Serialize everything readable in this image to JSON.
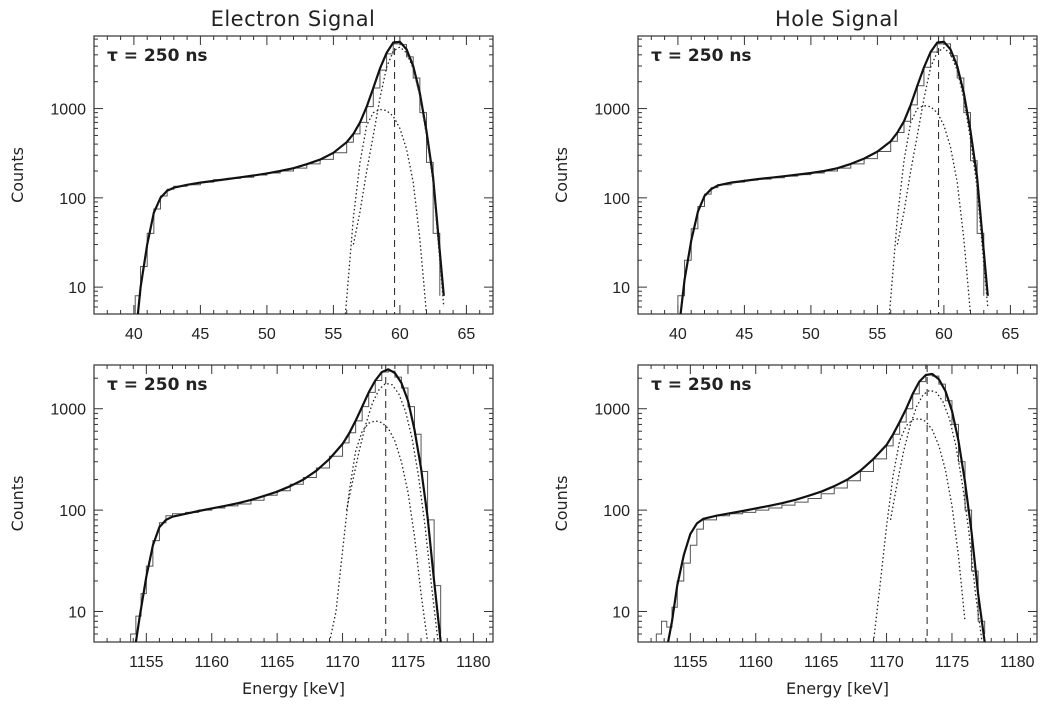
{
  "column_titles": [
    "Electron Signal",
    "Hole Signal"
  ],
  "chart_data": [
    {
      "type": "line",
      "panel": "top-left",
      "title": "Electron Signal",
      "annotation": "τ = 250 ns",
      "ylabel": "Counts",
      "xlabel": "",
      "yscale": "log",
      "xlim": [
        37,
        67
      ],
      "ylim": [
        5,
        6500
      ],
      "xticks": [
        40,
        45,
        50,
        55,
        60,
        65
      ],
      "yticks": [
        10,
        100,
        1000
      ],
      "peak_position": 59.6,
      "series": [
        {
          "style": "histogram",
          "x": [
            40.1,
            40.5,
            41,
            41.5,
            42,
            42.5,
            43,
            44,
            45,
            46,
            47,
            48,
            49,
            50,
            51,
            52,
            53,
            54,
            55,
            56,
            56.5,
            57,
            57.5,
            58,
            58.5,
            59,
            59.5,
            60,
            60.5,
            61,
            61.5,
            62,
            62.5,
            63
          ],
          "y": [
            8,
            17,
            40,
            75,
            105,
            125,
            135,
            140,
            150,
            160,
            165,
            170,
            180,
            190,
            200,
            215,
            240,
            270,
            320,
            420,
            520,
            700,
            1050,
            1700,
            2700,
            4100,
            5300,
            5200,
            3800,
            2200,
            900,
            250,
            40,
            8
          ]
        },
        {
          "style": "solid",
          "x": [
            40.3,
            40.5,
            41,
            41.5,
            42,
            42.5,
            43,
            44,
            45,
            46,
            47,
            48,
            49,
            50,
            51,
            52,
            53,
            54,
            55,
            56,
            56.5,
            57,
            57.5,
            58,
            58.5,
            59,
            59.5,
            60,
            60.5,
            61,
            61.5,
            62,
            62.5,
            63,
            63.3
          ],
          "y": [
            5,
            10,
            30,
            68,
            100,
            120,
            130,
            140,
            148,
            155,
            162,
            170,
            178,
            188,
            200,
            215,
            238,
            268,
            320,
            420,
            520,
            700,
            1050,
            1700,
            2800,
            4200,
            5500,
            5600,
            4600,
            3000,
            1500,
            560,
            170,
            25,
            8
          ]
        },
        {
          "style": "dotted",
          "x": [
            55.9,
            56.5,
            57,
            57.5,
            58,
            58.5,
            59,
            59.5,
            60,
            60.5,
            61,
            61.5,
            62
          ],
          "y": [
            5,
            60,
            250,
            650,
            900,
            980,
            950,
            820,
            600,
            350,
            150,
            35,
            5
          ]
        },
        {
          "style": "dotted",
          "x": [
            56.5,
            57,
            57.5,
            58,
            58.5,
            59,
            59.5,
            60,
            60.5,
            61,
            61.5,
            62,
            62.5,
            63,
            63.3
          ],
          "y": [
            30,
            70,
            200,
            500,
            1300,
            2900,
            4400,
            4900,
            4200,
            2800,
            1400,
            500,
            150,
            20,
            6
          ]
        }
      ]
    },
    {
      "type": "line",
      "panel": "top-right",
      "title": "Hole Signal",
      "annotation": "τ = 250 ns",
      "ylabel": "Counts",
      "xlabel": "",
      "yscale": "log",
      "xlim": [
        37,
        67
      ],
      "ylim": [
        5,
        6500
      ],
      "xticks": [
        40,
        45,
        50,
        55,
        60,
        65
      ],
      "yticks": [
        10,
        100,
        1000
      ],
      "peak_position": 59.6,
      "series": [
        {
          "style": "histogram",
          "x": [
            40,
            40.5,
            41,
            41.5,
            42,
            42.5,
            43,
            44,
            45,
            46,
            47,
            48,
            49,
            50,
            51,
            52,
            53,
            54,
            55,
            56,
            56.5,
            57,
            57.5,
            58,
            58.5,
            59,
            59.5,
            60,
            60.5,
            61,
            61.5,
            62,
            62.5,
            63
          ],
          "y": [
            8,
            20,
            45,
            80,
            110,
            130,
            140,
            150,
            158,
            162,
            168,
            175,
            182,
            190,
            200,
            215,
            240,
            275,
            330,
            430,
            540,
            720,
            1100,
            1800,
            2900,
            4300,
            5300,
            5300,
            3900,
            2200,
            900,
            260,
            40,
            8
          ]
        },
        {
          "style": "solid",
          "x": [
            40.2,
            40.5,
            41,
            41.5,
            42,
            42.5,
            43,
            44,
            45,
            46,
            47,
            48,
            49,
            50,
            51,
            52,
            53,
            54,
            55,
            56,
            56.5,
            57,
            57.5,
            58,
            58.5,
            59,
            59.5,
            60,
            60.5,
            61,
            61.5,
            62,
            62.5,
            63,
            63.3
          ],
          "y": [
            5,
            12,
            33,
            70,
            105,
            125,
            138,
            148,
            155,
            162,
            168,
            175,
            182,
            190,
            200,
            215,
            240,
            275,
            330,
            430,
            540,
            720,
            1100,
            1800,
            2900,
            4300,
            5500,
            5600,
            4600,
            3000,
            1500,
            560,
            170,
            25,
            8
          ]
        },
        {
          "style": "dotted",
          "x": [
            55.9,
            56.5,
            57,
            57.5,
            58,
            58.5,
            59,
            59.5,
            60,
            60.5,
            61,
            61.5,
            62
          ],
          "y": [
            5,
            60,
            260,
            700,
            1000,
            1080,
            1050,
            900,
            650,
            370,
            150,
            35,
            5
          ]
        },
        {
          "style": "dotted",
          "x": [
            56.5,
            57,
            57.5,
            58,
            58.5,
            59,
            59.5,
            60,
            60.5,
            61,
            61.5,
            62,
            62.5,
            63,
            63.3
          ],
          "y": [
            30,
            70,
            200,
            500,
            1300,
            2900,
            4300,
            4800,
            4100,
            2700,
            1300,
            450,
            130,
            18,
            6
          ]
        }
      ]
    },
    {
      "type": "line",
      "panel": "bottom-left",
      "annotation": "τ = 250 ns",
      "ylabel": "Counts",
      "xlabel": "Energy [keV]",
      "yscale": "log",
      "xlim": [
        1151,
        1181.5
      ],
      "ylim": [
        5,
        2700
      ],
      "xticks": [
        1155,
        1160,
        1165,
        1170,
        1175,
        1180
      ],
      "yticks": [
        10,
        100,
        1000
      ],
      "peak_position": 1173.3,
      "series": [
        {
          "style": "histogram",
          "x": [
            1153.8,
            1154.2,
            1154.6,
            1155,
            1155.5,
            1156,
            1156.5,
            1157,
            1158,
            1159,
            1160,
            1161,
            1162,
            1163,
            1164,
            1165,
            1166,
            1167,
            1168,
            1169,
            1170,
            1170.5,
            1171,
            1171.5,
            1172,
            1172.5,
            1173,
            1173.5,
            1174,
            1174.5,
            1175,
            1175.5,
            1176,
            1176.5,
            1177,
            1177.5
          ],
          "y": [
            6,
            9,
            15,
            28,
            50,
            75,
            88,
            92,
            95,
            100,
            105,
            110,
            115,
            125,
            140,
            155,
            180,
            210,
            260,
            340,
            460,
            580,
            760,
            1050,
            1450,
            1900,
            2300,
            2350,
            2050,
            1600,
            1050,
            560,
            240,
            80,
            18,
            6
          ]
        },
        {
          "style": "solid",
          "x": [
            1154.2,
            1154.5,
            1155,
            1155.5,
            1156,
            1156.5,
            1157,
            1158,
            1159,
            1160,
            1161,
            1162,
            1163,
            1164,
            1165,
            1166,
            1167,
            1168,
            1169,
            1170,
            1170.5,
            1171,
            1171.5,
            1172,
            1172.5,
            1173,
            1173.5,
            1174,
            1174.5,
            1175,
            1175.5,
            1176,
            1176.5,
            1177,
            1177.5
          ],
          "y": [
            5,
            9,
            22,
            45,
            68,
            80,
            86,
            92,
            98,
            104,
            110,
            117,
            126,
            138,
            152,
            172,
            200,
            245,
            320,
            450,
            570,
            760,
            1050,
            1450,
            1900,
            2300,
            2450,
            2250,
            1800,
            1200,
            620,
            260,
            85,
            20,
            5
          ]
        },
        {
          "style": "dotted",
          "x": [
            1169,
            1169.5,
            1170,
            1170.5,
            1171,
            1171.5,
            1172,
            1172.5,
            1173,
            1173.5,
            1174,
            1174.5,
            1175,
            1175.5,
            1176,
            1176.5
          ],
          "y": [
            5,
            10,
            40,
            150,
            380,
            600,
            720,
            760,
            730,
            640,
            480,
            300,
            150,
            55,
            15,
            5
          ]
        },
        {
          "style": "dotted",
          "x": [
            1170.3,
            1170.8,
            1171.3,
            1171.8,
            1172.3,
            1172.8,
            1173.3,
            1173.8,
            1174.3,
            1174.8,
            1175.3,
            1175.8,
            1176.3,
            1176.8,
            1177.3
          ],
          "y": [
            100,
            200,
            400,
            720,
            1150,
            1550,
            1780,
            1720,
            1400,
            950,
            520,
            220,
            70,
            18,
            5
          ]
        }
      ]
    },
    {
      "type": "line",
      "panel": "bottom-right",
      "annotation": "τ = 250 ns",
      "ylabel": "Counts",
      "xlabel": "Energy [keV]",
      "yscale": "log",
      "xlim": [
        1151,
        1181.5
      ],
      "ylim": [
        5,
        2700
      ],
      "xticks": [
        1155,
        1160,
        1165,
        1170,
        1175,
        1180
      ],
      "yticks": [
        10,
        100,
        1000
      ],
      "peak_position": 1173.1,
      "series": [
        {
          "style": "histogram",
          "x": [
            1152.4,
            1152.8,
            1153.2,
            1153.6,
            1154,
            1154.5,
            1155,
            1155.5,
            1156,
            1157,
            1158,
            1159,
            1160,
            1161,
            1162,
            1163,
            1164,
            1165,
            1166,
            1167,
            1168,
            1169,
            1170,
            1170.5,
            1171,
            1171.5,
            1172,
            1172.5,
            1173,
            1173.5,
            1174,
            1174.5,
            1175,
            1175.5,
            1176,
            1176.5,
            1177,
            1177.5
          ],
          "y": [
            6,
            8,
            7,
            11,
            20,
            30,
            45,
            65,
            80,
            88,
            92,
            95,
            100,
            105,
            112,
            120,
            130,
            145,
            165,
            195,
            240,
            320,
            430,
            560,
            740,
            1000,
            1400,
            1850,
            2150,
            2100,
            1750,
            1200,
            700,
            300,
            100,
            25,
            8,
            6
          ]
        },
        {
          "style": "solid",
          "x": [
            1153.3,
            1153.6,
            1154,
            1154.5,
            1155,
            1155.5,
            1156,
            1157,
            1158,
            1159,
            1160,
            1161,
            1162,
            1163,
            1164,
            1165,
            1166,
            1167,
            1168,
            1169,
            1170,
            1170.5,
            1171,
            1171.5,
            1172,
            1172.5,
            1173,
            1173.5,
            1174,
            1174.5,
            1175,
            1175.5,
            1176,
            1176.5,
            1177,
            1177.5
          ],
          "y": [
            5,
            8,
            18,
            36,
            58,
            74,
            82,
            88,
            93,
            98,
            104,
            110,
            117,
            126,
            138,
            152,
            172,
            200,
            245,
            320,
            440,
            560,
            740,
            1000,
            1400,
            1850,
            2150,
            2200,
            1950,
            1500,
            950,
            480,
            190,
            60,
            15,
            5
          ]
        },
        {
          "style": "dotted",
          "x": [
            1169,
            1169.5,
            1170,
            1170.5,
            1171,
            1171.5,
            1172,
            1172.5,
            1173,
            1173.5,
            1174,
            1174.5,
            1175,
            1175.5,
            1176
          ],
          "y": [
            5,
            18,
            70,
            220,
            480,
            680,
            780,
            800,
            750,
            620,
            430,
            250,
            110,
            35,
            8
          ]
        },
        {
          "style": "dotted",
          "x": [
            1170.3,
            1170.8,
            1171.3,
            1171.8,
            1172.3,
            1172.8,
            1173.3,
            1173.8,
            1174.3,
            1174.8,
            1175.3,
            1175.8,
            1176.3,
            1176.8,
            1177.3
          ],
          "y": [
            80,
            180,
            380,
            680,
            1050,
            1380,
            1520,
            1450,
            1180,
            800,
            430,
            180,
            60,
            15,
            5
          ]
        }
      ]
    }
  ]
}
